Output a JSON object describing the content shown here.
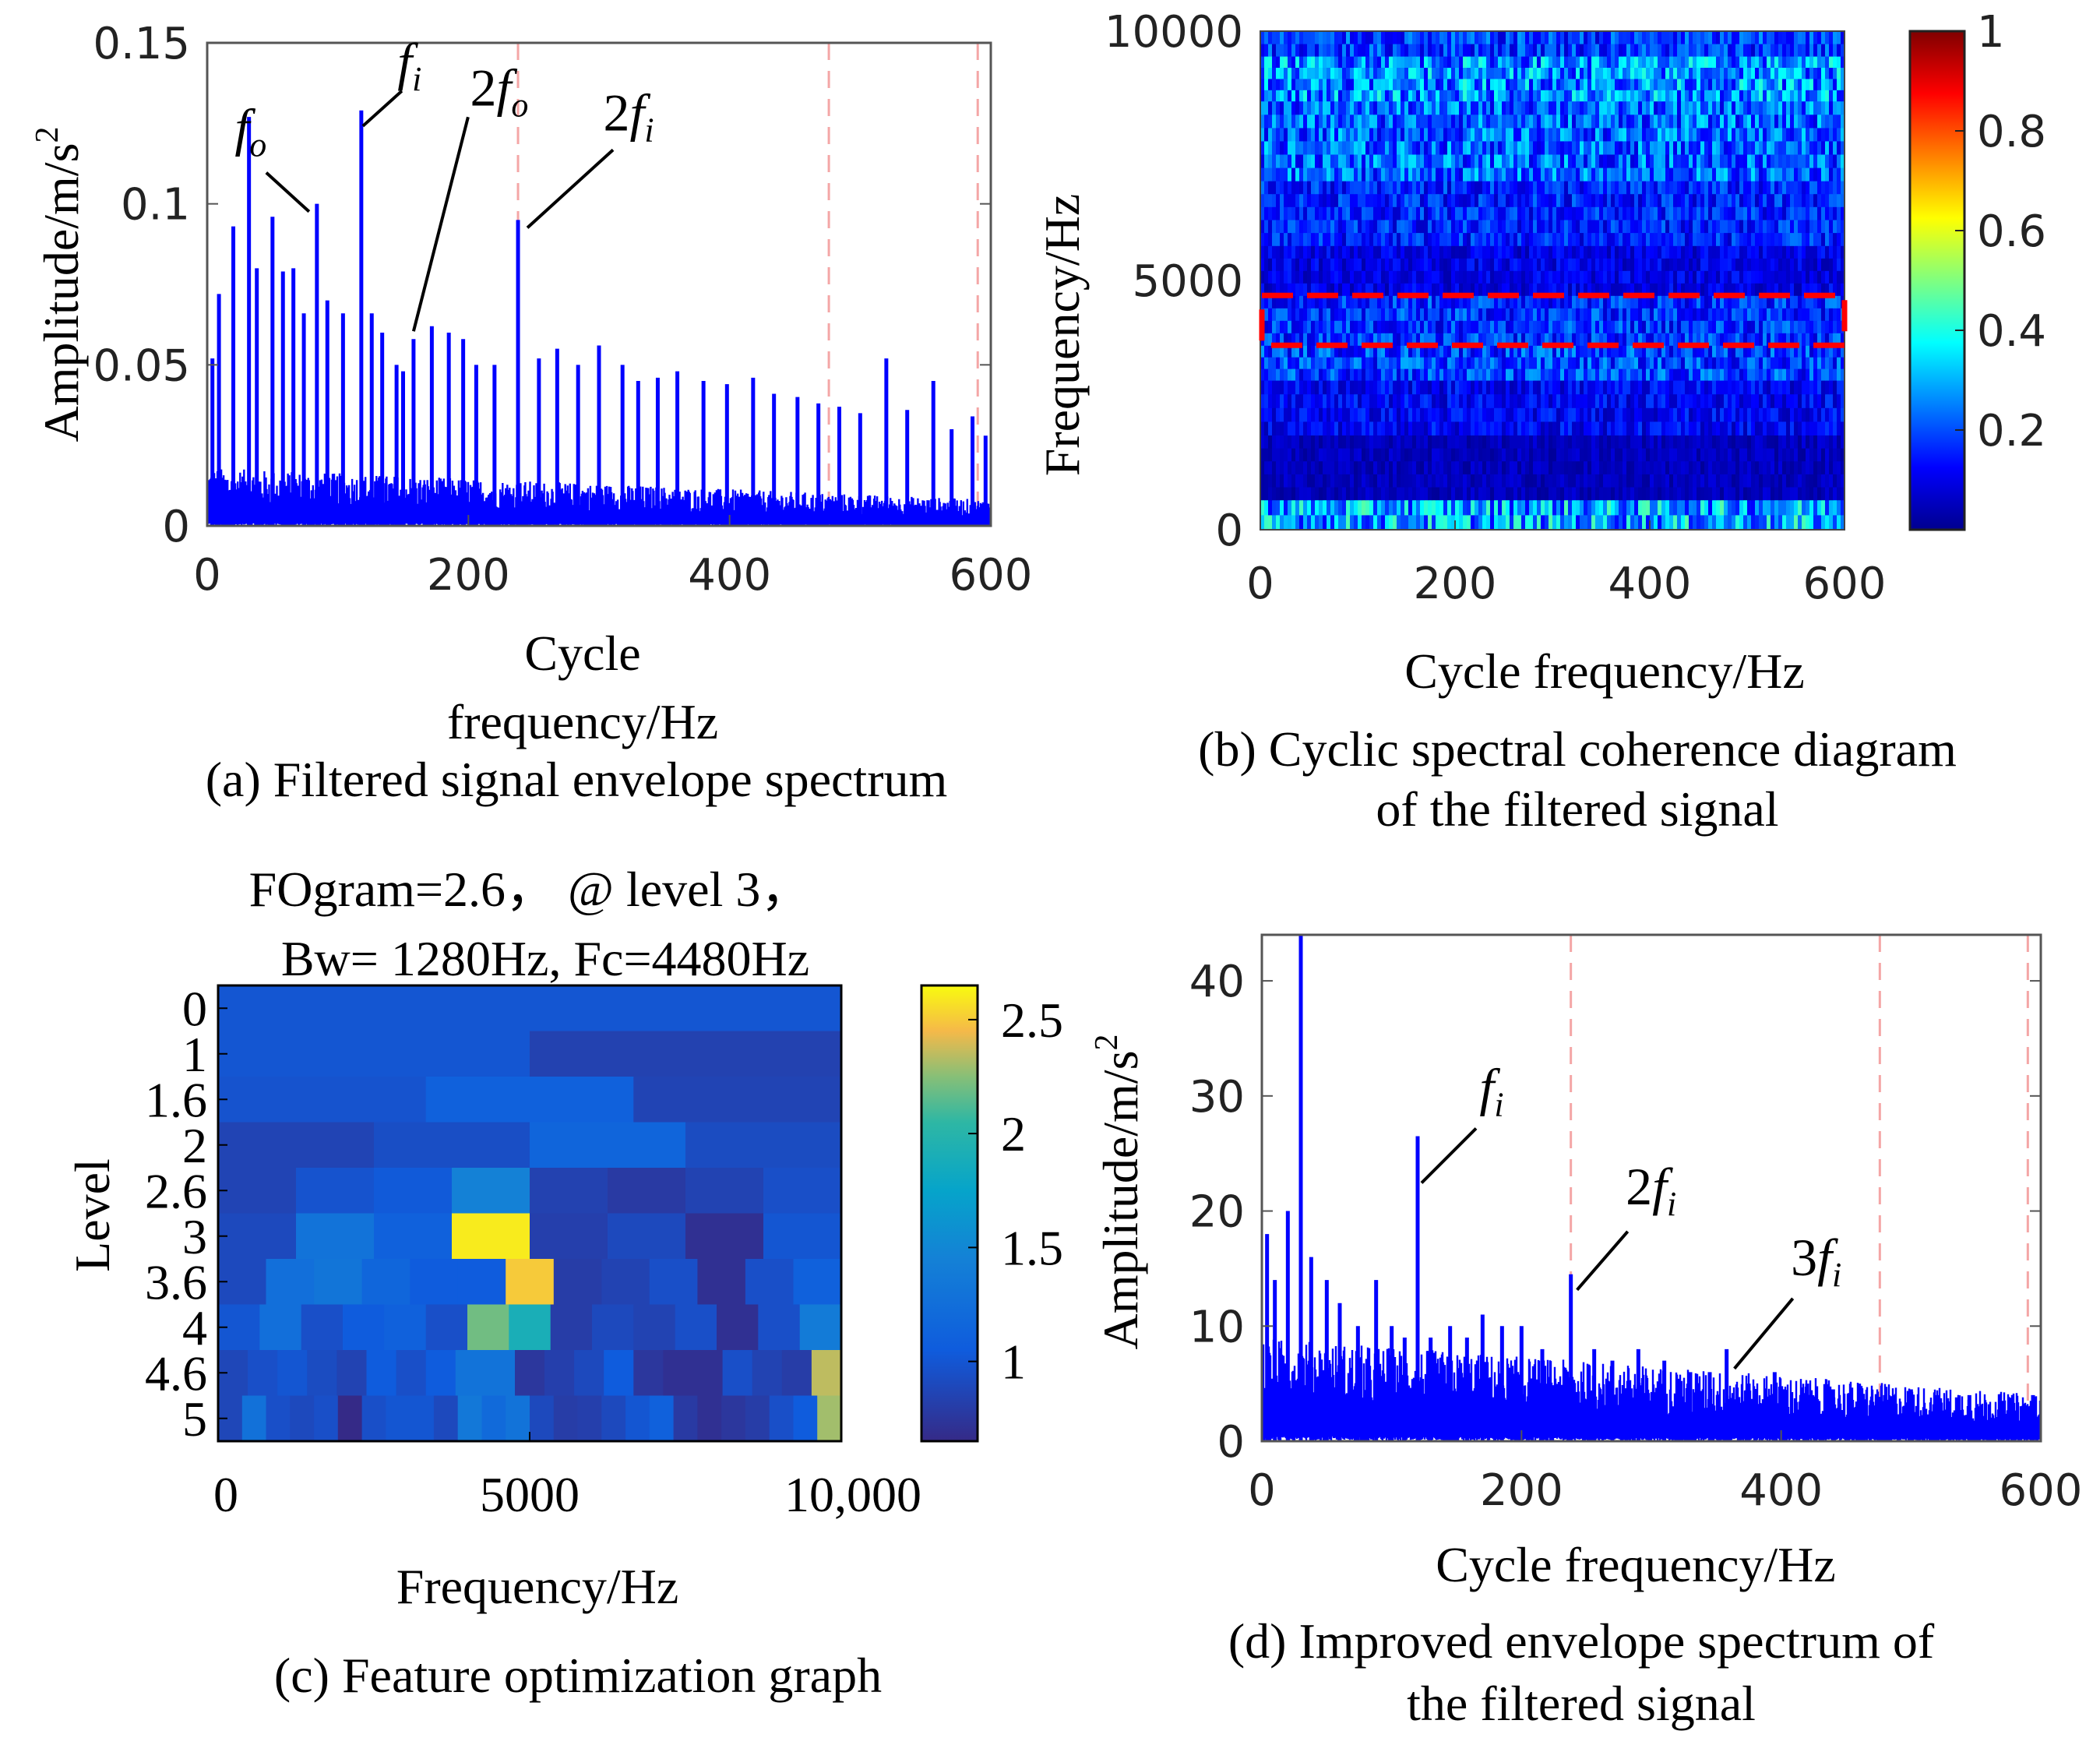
{
  "chart_data": [
    {
      "id": "a",
      "type": "line",
      "caption": "(a) Filtered signal envelope spectrum",
      "xlabel": [
        "Cycle",
        "frequency/Hz"
      ],
      "ylabel": "Amplitude/m/s",
      "ylabel_sup": "2",
      "xlim": [
        0,
        600
      ],
      "ylim": [
        0,
        0.15
      ],
      "xticks": [
        "0",
        "200",
        "400",
        "600"
      ],
      "xtick_values": [
        0,
        200,
        400,
        600
      ],
      "yticks": [
        "0",
        "0.05",
        "0.1",
        "0.15"
      ],
      "ytick_values": [
        0,
        0.05,
        0.1,
        0.15
      ],
      "color": "#0000ff",
      "reference_lines_hz": [
        238,
        476,
        590
      ],
      "peaks": [
        {
          "x": 4,
          "y": 0.052
        },
        {
          "x": 9,
          "y": 0.072
        },
        {
          "x": 20,
          "y": 0.093
        },
        {
          "x": 32,
          "y": 0.127
        },
        {
          "x": 38,
          "y": 0.08
        },
        {
          "x": 50,
          "y": 0.096
        },
        {
          "x": 58,
          "y": 0.079
        },
        {
          "x": 66,
          "y": 0.08
        },
        {
          "x": 74,
          "y": 0.066
        },
        {
          "x": 84,
          "y": 0.1
        },
        {
          "x": 92,
          "y": 0.07
        },
        {
          "x": 104,
          "y": 0.066
        },
        {
          "x": 118,
          "y": 0.129
        },
        {
          "x": 126,
          "y": 0.066
        },
        {
          "x": 134,
          "y": 0.06
        },
        {
          "x": 145,
          "y": 0.05
        },
        {
          "x": 150,
          "y": 0.048
        },
        {
          "x": 158,
          "y": 0.058
        },
        {
          "x": 172,
          "y": 0.062
        },
        {
          "x": 185,
          "y": 0.06
        },
        {
          "x": 196,
          "y": 0.058
        },
        {
          "x": 206,
          "y": 0.05
        },
        {
          "x": 220,
          "y": 0.05
        },
        {
          "x": 238,
          "y": 0.095
        },
        {
          "x": 254,
          "y": 0.052
        },
        {
          "x": 268,
          "y": 0.055
        },
        {
          "x": 284,
          "y": 0.05
        },
        {
          "x": 300,
          "y": 0.056
        },
        {
          "x": 318,
          "y": 0.05
        },
        {
          "x": 330,
          "y": 0.045
        },
        {
          "x": 345,
          "y": 0.046
        },
        {
          "x": 360,
          "y": 0.048
        },
        {
          "x": 380,
          "y": 0.045
        },
        {
          "x": 398,
          "y": 0.044
        },
        {
          "x": 418,
          "y": 0.046
        },
        {
          "x": 434,
          "y": 0.041
        },
        {
          "x": 452,
          "y": 0.04
        },
        {
          "x": 468,
          "y": 0.038
        },
        {
          "x": 484,
          "y": 0.037
        },
        {
          "x": 500,
          "y": 0.035
        },
        {
          "x": 520,
          "y": 0.052
        },
        {
          "x": 536,
          "y": 0.036
        },
        {
          "x": 556,
          "y": 0.045
        },
        {
          "x": 570,
          "y": 0.03
        },
        {
          "x": 586,
          "y": 0.034
        },
        {
          "x": 596,
          "y": 0.028
        }
      ],
      "annotations": [
        {
          "base": "f",
          "sub": "o",
          "prefix": "",
          "x": 84,
          "y": 0.1
        },
        {
          "base": "f",
          "sub": "i",
          "prefix": "",
          "x": 118,
          "y": 0.129
        },
        {
          "base": "f",
          "sub": "o",
          "prefix": "2",
          "x": 158,
          "y": 0.058
        },
        {
          "base": "f",
          "sub": "i",
          "prefix": "2",
          "x": 238,
          "y": 0.095
        }
      ]
    },
    {
      "id": "b",
      "type": "heatmap",
      "caption": [
        "(b) Cyclic spectral coherence diagram",
        "of the filtered signal"
      ],
      "xlabel": "Cycle frequency/Hz",
      "ylabel": "Frequency/Hz",
      "xlim": [
        0,
        600
      ],
      "ylim": [
        0,
        10000
      ],
      "xticks": [
        "0",
        "200",
        "400",
        "600"
      ],
      "xtick_values": [
        0,
        200,
        400,
        600
      ],
      "yticks": [
        "0",
        "5000",
        "10000"
      ],
      "ytick_values": [
        0,
        5000,
        10000
      ],
      "colorbar_ticks": [
        "0.2",
        "0.4",
        "0.6",
        "0.8",
        "1"
      ],
      "colorbar_values": [
        0.2,
        0.4,
        0.6,
        0.8,
        1.0
      ],
      "colorbar_range": [
        0,
        1
      ],
      "colormap": "jet",
      "highlight_band_hz": [
        3700,
        4700
      ],
      "highlight_color": "#ff0000",
      "row_intensity": [
        {
          "f0": 0,
          "f1": 600,
          "v": 0.34
        },
        {
          "f0": 600,
          "f1": 1900,
          "v": 0.07
        },
        {
          "f0": 1900,
          "f1": 3000,
          "v": 0.14
        },
        {
          "f0": 3000,
          "f1": 3700,
          "v": 0.22
        },
        {
          "f0": 3700,
          "f1": 4700,
          "v": 0.2
        },
        {
          "f0": 4700,
          "f1": 5700,
          "v": 0.12
        },
        {
          "f0": 5700,
          "f1": 7000,
          "v": 0.18
        },
        {
          "f0": 7000,
          "f1": 8600,
          "v": 0.26
        },
        {
          "f0": 8600,
          "f1": 9500,
          "v": 0.31
        },
        {
          "f0": 9500,
          "f1": 10000,
          "v": 0.21
        }
      ]
    },
    {
      "id": "c",
      "type": "heatmap",
      "caption": "(c) Feature optimization graph",
      "title": [
        "FOgram=2.6，  @ level 3，",
        "Bw= 1280Hz, Fc=4480Hz"
      ],
      "xlabel": "Frequency/Hz",
      "ylabel": "Level",
      "xlim": [
        0,
        10000
      ],
      "xticks": [
        "0",
        "5000",
        "10,000"
      ],
      "xtick_values": [
        0,
        5000,
        10000
      ],
      "yticks": [
        "0",
        "1",
        "1.6",
        "2",
        "2.6",
        "3",
        "3.6",
        "4",
        "4.6",
        "5"
      ],
      "colorbar_ticks": [
        "1",
        "1.5",
        "2",
        "2.5"
      ],
      "colorbar_values": [
        1,
        1.5,
        2,
        2.5
      ],
      "colorbar_range": [
        0.65,
        2.65
      ],
      "colormap": "parula",
      "rows": [
        [
          1.0
        ],
        [
          1.0,
          0.84
        ],
        [
          0.98,
          1.1,
          0.86
        ],
        [
          0.86,
          0.94,
          1.15,
          0.92
        ],
        [
          0.86,
          0.98,
          1.03,
          1.45,
          0.84,
          0.78,
          0.85,
          0.95
        ],
        [
          0.9,
          1.3,
          1.1,
          2.6,
          0.82,
          0.9,
          0.7,
          1.0
        ],
        [
          0.9,
          1.25,
          1.32,
          1.16,
          1.05,
          1.05,
          2.5,
          0.8,
          0.85,
          0.95,
          0.7,
          0.95,
          1.1
        ],
        [
          1.0,
          1.25,
          0.95,
          1.05,
          1.1,
          0.95,
          2.2,
          1.9,
          0.8,
          0.9,
          0.85,
          0.95,
          0.7,
          0.95,
          1.38
        ],
        [
          0.88,
          0.95,
          1.0,
          0.92,
          0.85,
          1.05,
          0.95,
          1.05,
          1.3,
          1.3,
          0.75,
          0.82,
          0.9,
          1.05,
          0.75,
          0.7,
          0.7,
          0.95,
          0.85,
          0.8,
          2.35
        ],
        [
          0.88,
          1.28,
          0.95,
          0.9,
          0.95,
          0.62,
          0.95,
          1.0,
          1.0,
          0.9,
          1.35,
          1.2,
          1.3,
          0.9,
          0.8,
          0.82,
          0.9,
          1.0,
          1.1,
          0.78,
          0.7,
          0.75,
          0.8,
          0.95,
          1.05,
          2.3
        ]
      ]
    },
    {
      "id": "d",
      "type": "line",
      "caption": [
        "(d) Improved envelope spectrum of",
        "the filtered signal"
      ],
      "xlabel": "Cycle frequency/Hz",
      "ylabel": "Amplitude/m/s",
      "ylabel_sup": "2",
      "xlim": [
        0,
        600
      ],
      "ylim": [
        0,
        44
      ],
      "xticks": [
        "0",
        "200",
        "400",
        "600"
      ],
      "xtick_values": [
        0,
        200,
        400,
        600
      ],
      "yticks": [
        "0",
        "10",
        "20",
        "30",
        "40"
      ],
      "ytick_values": [
        0,
        10,
        20,
        30,
        40
      ],
      "color": "#0000ff",
      "reference_lines_hz": [
        238,
        476,
        590
      ],
      "peaks": [
        {
          "x": 4,
          "y": 18
        },
        {
          "x": 10,
          "y": 14
        },
        {
          "x": 20,
          "y": 20
        },
        {
          "x": 30,
          "y": 44
        },
        {
          "x": 38,
          "y": 16
        },
        {
          "x": 50,
          "y": 14
        },
        {
          "x": 60,
          "y": 12
        },
        {
          "x": 74,
          "y": 10
        },
        {
          "x": 88,
          "y": 14
        },
        {
          "x": 100,
          "y": 10
        },
        {
          "x": 110,
          "y": 9
        },
        {
          "x": 120,
          "y": 26.5
        },
        {
          "x": 130,
          "y": 9
        },
        {
          "x": 145,
          "y": 10
        },
        {
          "x": 158,
          "y": 9
        },
        {
          "x": 170,
          "y": 11
        },
        {
          "x": 185,
          "y": 10
        },
        {
          "x": 200,
          "y": 10
        },
        {
          "x": 216,
          "y": 8
        },
        {
          "x": 238,
          "y": 14.5
        },
        {
          "x": 256,
          "y": 8
        },
        {
          "x": 270,
          "y": 7
        },
        {
          "x": 290,
          "y": 8
        },
        {
          "x": 310,
          "y": 7
        },
        {
          "x": 330,
          "y": 6
        },
        {
          "x": 345,
          "y": 6
        },
        {
          "x": 358,
          "y": 8
        },
        {
          "x": 375,
          "y": 5
        },
        {
          "x": 395,
          "y": 6
        },
        {
          "x": 420,
          "y": 5
        },
        {
          "x": 440,
          "y": 4.5
        },
        {
          "x": 460,
          "y": 5
        },
        {
          "x": 480,
          "y": 4
        },
        {
          "x": 500,
          "y": 4.5
        },
        {
          "x": 520,
          "y": 4
        },
        {
          "x": 545,
          "y": 4
        },
        {
          "x": 570,
          "y": 3.5
        },
        {
          "x": 594,
          "y": 4
        }
      ],
      "annotations": [
        {
          "base": "f",
          "sub": "i",
          "prefix": "",
          "x": 120,
          "y": 26.5
        },
        {
          "base": "f",
          "sub": "i",
          "prefix": "2",
          "x": 238,
          "y": 14.5
        },
        {
          "base": "f",
          "sub": "i",
          "prefix": "3",
          "x": 358,
          "y": 8
        }
      ]
    }
  ]
}
